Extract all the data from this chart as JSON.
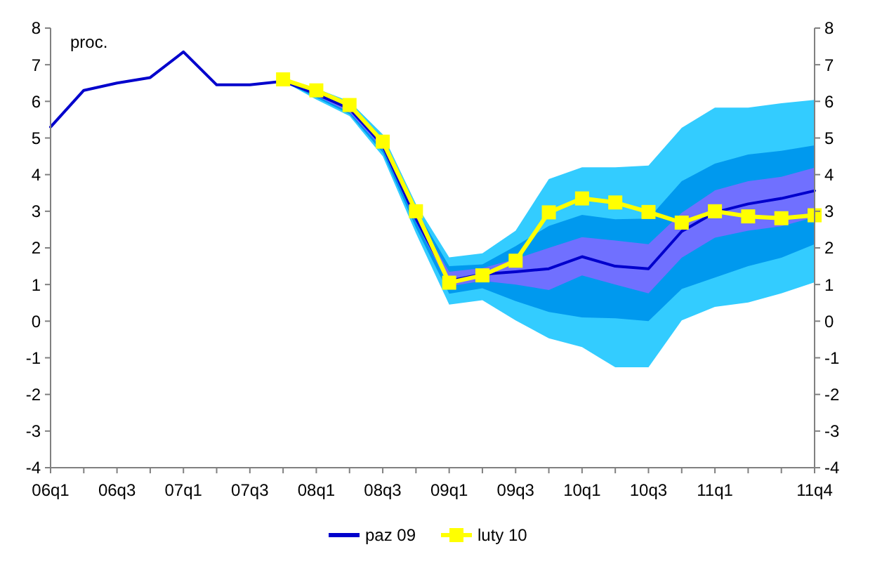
{
  "chart_data": {
    "type": "line",
    "ylabel": "proc.",
    "categories": [
      "06q1",
      null,
      "06q3",
      null,
      "07q1",
      null,
      "07q3",
      null,
      "08q1",
      null,
      "08q3",
      null,
      "09q1",
      null,
      "09q3",
      null,
      "10q1",
      null,
      "10q3",
      null,
      "11q1",
      null,
      null,
      "11q4"
    ],
    "ylim": [
      -4,
      8
    ],
    "yticks": [
      -4,
      -3,
      -2,
      -1,
      0,
      1,
      2,
      3,
      4,
      5,
      6,
      7,
      8
    ],
    "y2lim": [
      -4,
      8
    ],
    "y2ticks": [
      -4,
      -3,
      -2,
      -1,
      0,
      1,
      2,
      3,
      4,
      5,
      6,
      7,
      8
    ],
    "grid": false,
    "legend": "bottom",
    "series": [
      {
        "type": "area",
        "color": "#33ccff",
        "values": [
          null,
          null,
          null,
          null,
          null,
          null,
          null,
          null,
          null,
          null,
          null,
          null,
          null,
          null,
          null,
          null,
          null,
          null,
          null,
          null,
          null,
          null,
          null,
          null
        ],
        "lower": [
          null,
          null,
          null,
          null,
          null,
          null,
          null,
          6.55,
          6.05,
          5.6,
          4.5,
          2.4,
          0.45,
          0.57,
          0.02,
          -0.47,
          -0.71,
          -1.26,
          -1.26,
          0.02,
          0.39,
          0.51,
          0.76,
          1.06
        ],
        "upper": [
          null,
          null,
          null,
          null,
          null,
          null,
          null,
          6.55,
          6.35,
          6.0,
          5.1,
          3.2,
          1.74,
          1.85,
          2.47,
          3.88,
          4.2,
          4.2,
          4.25,
          5.28,
          5.83,
          5.83,
          5.95,
          6.04
        ]
      },
      {
        "type": "area",
        "color": "#0099ee",
        "values": [
          null,
          null,
          null,
          null,
          null,
          null,
          null,
          null,
          null,
          null,
          null,
          null,
          null,
          null,
          null,
          null,
          null,
          null,
          null,
          null,
          null,
          null,
          null,
          null
        ],
        "lower": [
          null,
          null,
          null,
          null,
          null,
          null,
          null,
          6.55,
          6.1,
          5.65,
          4.6,
          2.55,
          0.75,
          0.9,
          0.55,
          0.25,
          0.1,
          0.08,
          0.0,
          0.88,
          1.19,
          1.5,
          1.73,
          2.1
        ],
        "upper": [
          null,
          null,
          null,
          null,
          null,
          null,
          null,
          6.55,
          6.3,
          5.95,
          5.0,
          3.05,
          1.5,
          1.55,
          2.05,
          2.6,
          2.9,
          2.78,
          2.8,
          3.82,
          4.3,
          4.55,
          4.65,
          4.8
        ]
      },
      {
        "type": "area",
        "color": "#7070ff",
        "values": [
          null,
          null,
          null,
          null,
          null,
          null,
          null,
          null,
          null,
          null,
          null,
          null,
          null,
          null,
          null,
          null,
          null,
          null,
          null,
          null,
          null,
          null,
          null,
          null
        ],
        "lower": [
          null,
          null,
          null,
          null,
          null,
          null,
          null,
          6.55,
          6.15,
          5.7,
          4.7,
          2.7,
          0.95,
          1.1,
          1.0,
          0.85,
          1.25,
          1.0,
          0.76,
          1.73,
          2.28,
          2.47,
          2.59,
          2.84
        ],
        "upper": [
          null,
          null,
          null,
          null,
          null,
          null,
          null,
          6.55,
          6.25,
          5.9,
          4.9,
          2.9,
          1.35,
          1.45,
          1.7,
          2.0,
          2.29,
          2.2,
          2.1,
          2.96,
          3.57,
          3.82,
          3.94,
          4.19
        ]
      },
      {
        "name": "paz 09",
        "color": "#0000cc",
        "marker": "none",
        "values": [
          5.3,
          6.3,
          6.5,
          6.65,
          7.35,
          6.45,
          6.45,
          6.55,
          6.2,
          5.8,
          4.8,
          2.8,
          1.1,
          1.28,
          1.35,
          1.43,
          1.76,
          1.5,
          1.43,
          2.45,
          2.97,
          3.2,
          3.35,
          3.56
        ]
      },
      {
        "name": "luty 10",
        "color": "#ffff00",
        "marker": "square",
        "values": [
          null,
          null,
          null,
          null,
          null,
          null,
          null,
          6.6,
          6.3,
          5.9,
          4.9,
          3.0,
          1.05,
          1.25,
          1.65,
          2.97,
          3.35,
          3.24,
          2.98,
          2.69,
          3.0,
          2.86,
          2.81,
          2.89
        ]
      }
    ]
  }
}
